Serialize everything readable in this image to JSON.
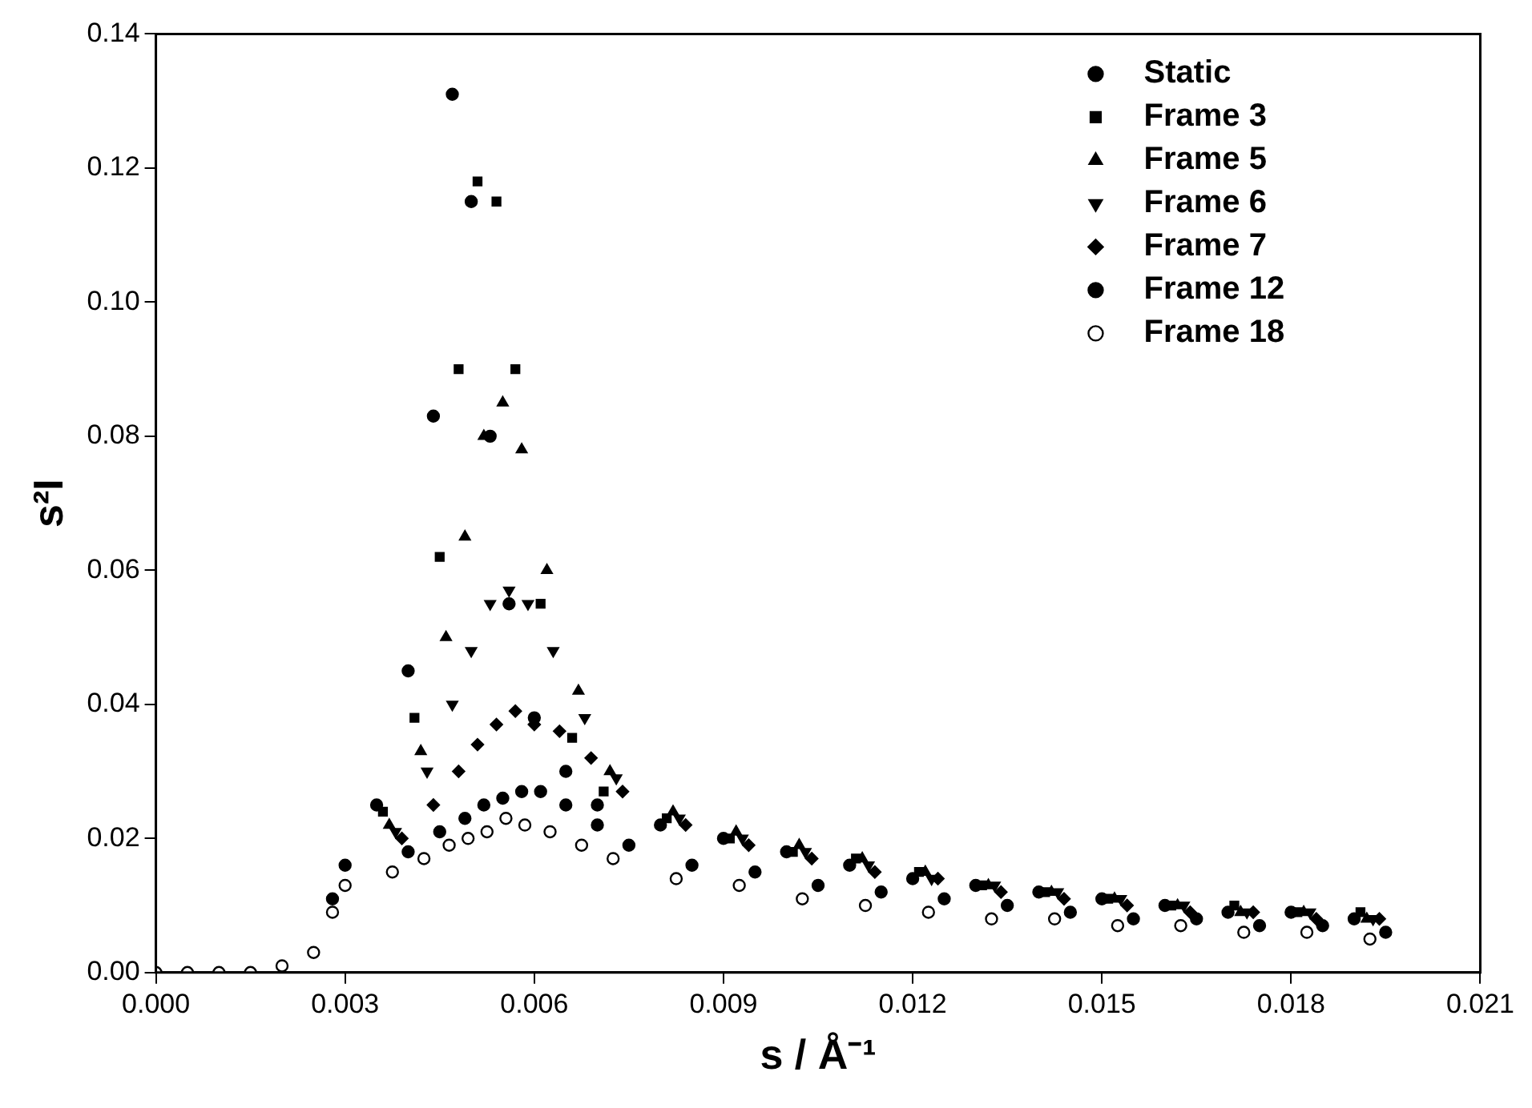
{
  "chart_data": {
    "type": "scatter",
    "xlabel": "s / Å⁻¹",
    "ylabel": "s²I",
    "series": [
      {
        "name": "Static",
        "color": "#000000",
        "marker": "circle",
        "x": [
          0.0028,
          0.003,
          0.0035,
          0.004,
          0.0044,
          0.0047,
          0.005,
          0.0053,
          0.0056,
          0.006,
          0.0065,
          0.007,
          0.008,
          0.009,
          0.01,
          0.011,
          0.012,
          0.013,
          0.014,
          0.015,
          0.016,
          0.017,
          0.018,
          0.019
        ],
        "values": [
          0.011,
          0.016,
          0.025,
          0.045,
          0.083,
          0.131,
          0.115,
          0.08,
          0.055,
          0.038,
          0.03,
          0.025,
          0.022,
          0.02,
          0.018,
          0.016,
          0.014,
          0.013,
          0.012,
          0.011,
          0.01,
          0.009,
          0.009,
          0.008
        ]
      },
      {
        "name": "Frame 3",
        "color": "#000000",
        "marker": "square",
        "x": [
          0.0036,
          0.0041,
          0.0045,
          0.0048,
          0.0051,
          0.0054,
          0.0057,
          0.0061,
          0.0066,
          0.0071,
          0.0081,
          0.0091,
          0.0101,
          0.0111,
          0.0121,
          0.0131,
          0.0141,
          0.0151,
          0.0161,
          0.0171,
          0.0181,
          0.0191
        ],
        "values": [
          0.024,
          0.038,
          0.062,
          0.09,
          0.118,
          0.115,
          0.09,
          0.055,
          0.035,
          0.027,
          0.023,
          0.02,
          0.018,
          0.017,
          0.015,
          0.013,
          0.012,
          0.011,
          0.01,
          0.01,
          0.009,
          0.009
        ]
      },
      {
        "name": "Frame 5",
        "color": "#000000",
        "marker": "triangle",
        "x": [
          0.0037,
          0.0042,
          0.0046,
          0.0049,
          0.0052,
          0.0055,
          0.0058,
          0.0062,
          0.0067,
          0.0072,
          0.0082,
          0.0092,
          0.0102,
          0.0112,
          0.0122,
          0.0132,
          0.0142,
          0.0152,
          0.0162,
          0.0172,
          0.0182,
          0.0192
        ],
        "values": [
          0.022,
          0.033,
          0.05,
          0.065,
          0.08,
          0.085,
          0.078,
          0.06,
          0.042,
          0.03,
          0.024,
          0.021,
          0.019,
          0.017,
          0.015,
          0.013,
          0.012,
          0.011,
          0.01,
          0.009,
          0.009,
          0.008
        ]
      },
      {
        "name": "Frame 6",
        "color": "#000000",
        "marker": "triangle-down",
        "x": [
          0.0038,
          0.0043,
          0.0047,
          0.005,
          0.0053,
          0.0056,
          0.0059,
          0.0063,
          0.0068,
          0.0073,
          0.0083,
          0.0093,
          0.0103,
          0.0113,
          0.0123,
          0.0133,
          0.0143,
          0.0153,
          0.0163,
          0.0173,
          0.0183,
          0.0193
        ],
        "values": [
          0.021,
          0.03,
          0.04,
          0.048,
          0.055,
          0.057,
          0.055,
          0.048,
          0.038,
          0.029,
          0.023,
          0.02,
          0.018,
          0.016,
          0.014,
          0.013,
          0.012,
          0.011,
          0.01,
          0.009,
          0.009,
          0.008
        ]
      },
      {
        "name": "Frame 7",
        "color": "#000000",
        "marker": "diamond",
        "x": [
          0.0039,
          0.0044,
          0.0048,
          0.0051,
          0.0054,
          0.0057,
          0.006,
          0.0064,
          0.0069,
          0.0074,
          0.0084,
          0.0094,
          0.0104,
          0.0114,
          0.0124,
          0.0134,
          0.0144,
          0.0154,
          0.0164,
          0.0174,
          0.0184,
          0.0194
        ],
        "values": [
          0.02,
          0.025,
          0.03,
          0.034,
          0.037,
          0.039,
          0.037,
          0.036,
          0.032,
          0.027,
          0.022,
          0.019,
          0.017,
          0.015,
          0.014,
          0.012,
          0.011,
          0.01,
          0.009,
          0.009,
          0.008,
          0.008
        ]
      },
      {
        "name": "Frame 12",
        "color": "#000000",
        "marker": "circle",
        "x": [
          0.004,
          0.0045,
          0.0049,
          0.0052,
          0.0055,
          0.0058,
          0.0061,
          0.0065,
          0.007,
          0.0075,
          0.0085,
          0.0095,
          0.0105,
          0.0115,
          0.0125,
          0.0135,
          0.0145,
          0.0155,
          0.0165,
          0.0175,
          0.0185,
          0.0195
        ],
        "values": [
          0.018,
          0.021,
          0.023,
          0.025,
          0.026,
          0.027,
          0.027,
          0.025,
          0.022,
          0.019,
          0.016,
          0.015,
          0.013,
          0.012,
          0.011,
          0.01,
          0.009,
          0.008,
          0.008,
          0.007,
          0.007,
          0.006
        ]
      },
      {
        "name": "Frame 18",
        "color": "#000000",
        "marker": "circle-open",
        "x": [
          0,
          0.0005,
          0.001,
          0.0015,
          0.002,
          0.0025,
          0.0028,
          0.003,
          0.00375,
          0.00425,
          0.00465,
          0.00495,
          0.00525,
          0.00555,
          0.00585,
          0.00625,
          0.00675,
          0.00725,
          0.00825,
          0.00925,
          0.01025,
          0.01125,
          0.01225,
          0.01325,
          0.01425,
          0.01525,
          0.01625,
          0.01725,
          0.01825,
          0.01925
        ],
        "values": [
          0,
          0,
          0,
          0,
          0.001,
          0.003,
          0.009,
          0.013,
          0.015,
          0.017,
          0.019,
          0.02,
          0.021,
          0.023,
          0.022,
          0.021,
          0.019,
          0.017,
          0.014,
          0.013,
          0.011,
          0.01,
          0.009,
          0.008,
          0.008,
          0.007,
          0.007,
          0.006,
          0.006,
          0.005
        ]
      }
    ],
    "xlim": [
      0,
      0.021
    ],
    "xticks": [
      {
        "value": 0,
        "label": "0.000"
      },
      {
        "value": 0.003,
        "label": "0.003"
      },
      {
        "value": 0.006,
        "label": "0.006"
      },
      {
        "value": 0.009,
        "label": "0.009"
      },
      {
        "value": 0.012,
        "label": "0.012"
      },
      {
        "value": 0.015,
        "label": "0.015"
      },
      {
        "value": 0.018,
        "label": "0.018"
      },
      {
        "value": 0.021,
        "label": "0.021"
      }
    ],
    "ylim": [
      0,
      0.14
    ],
    "yticks": [
      {
        "value": 0,
        "label": "0.00"
      },
      {
        "value": 0.02,
        "label": "0.02"
      },
      {
        "value": 0.04,
        "label": "0.04"
      },
      {
        "value": 0.06,
        "label": "0.06"
      },
      {
        "value": 0.08,
        "label": "0.08"
      },
      {
        "value": 0.1,
        "label": "0.10"
      },
      {
        "value": 0.12,
        "label": "0.12"
      },
      {
        "value": 0.14,
        "label": "0.14"
      }
    ],
    "legend": "top right",
    "grid": false
  }
}
